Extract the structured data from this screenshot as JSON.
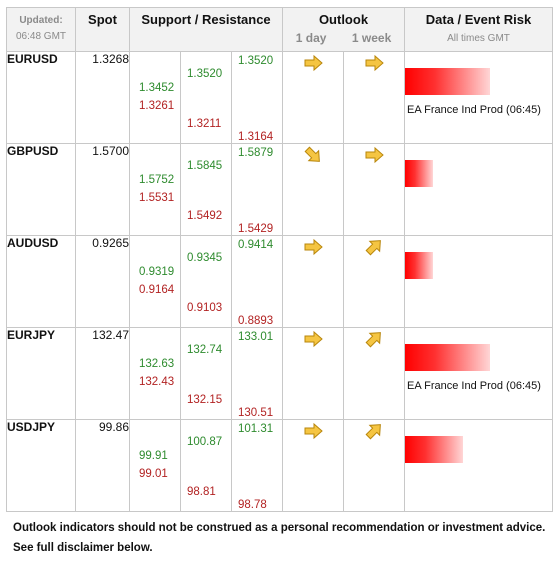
{
  "header": {
    "updated_label": "Updated:",
    "updated_time": "06:48 GMT",
    "spot": "Spot",
    "sr": "Support / Resistance",
    "outlook": "Outlook",
    "outlook_day": "1 day",
    "outlook_week": "1 week",
    "risk": "Data / Event Risk",
    "risk_sub": "All times GMT"
  },
  "rows": [
    {
      "pair": "EURUSD",
      "spot": "1.3268",
      "s1": "1.3452",
      "s2": "1.3261",
      "r1": "1.3520",
      "r2": "1.3211",
      "x1": "1.3520",
      "x2": "1.3164",
      "day": "right",
      "week": "right",
      "risk": 0.85,
      "event": "EA France Ind Prod (06:45)"
    },
    {
      "pair": "GBPUSD",
      "spot": "1.5700",
      "s1": "1.5752",
      "s2": "1.5531",
      "r1": "1.5845",
      "r2": "1.5492",
      "x1": "1.5879",
      "x2": "1.5429",
      "day": "down-right",
      "week": "right",
      "risk": 0.28,
      "event": ""
    },
    {
      "pair": "AUDUSD",
      "spot": "0.9265",
      "s1": "0.9319",
      "s2": "0.9164",
      "r1": "0.9345",
      "r2": "0.9103",
      "x1": "0.9414",
      "x2": "0.8893",
      "day": "right",
      "week": "up-right",
      "risk": 0.28,
      "event": ""
    },
    {
      "pair": "EURJPY",
      "spot": "132.47",
      "s1": "132.63",
      "s2": "132.43",
      "r1": "132.74",
      "r2": "132.15",
      "x1": "133.01",
      "x2": "130.51",
      "day": "right",
      "week": "up-right",
      "risk": 0.85,
      "event": "EA France Ind Prod (06:45)"
    },
    {
      "pair": "USDJPY",
      "spot": "99.86",
      "s1": "99.91",
      "s2": "99.01",
      "r1": "100.87",
      "r2": "98.81",
      "x1": "101.31",
      "x2": "98.78",
      "day": "right",
      "week": "up-right",
      "risk": 0.58,
      "event": ""
    }
  ],
  "footer": {
    "line1": "Outlook indicators should not be construed as a personal recommendation or investment advice.",
    "line2": "See full disclaimer below."
  },
  "colors": {
    "support": "#2e8b2e",
    "resistance": "#b22222",
    "arrow_fill": "#f5c542",
    "arrow_stroke": "#b8860b",
    "risk_bar": "#ff0000"
  }
}
